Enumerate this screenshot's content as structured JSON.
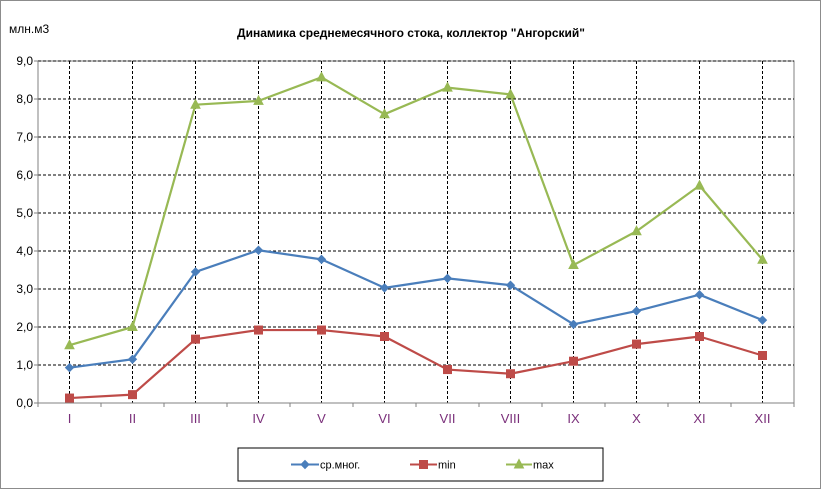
{
  "chart_data": {
    "type": "line",
    "title": "Динамика среднемесячного стока, коллектор \"Ангорский\"",
    "ylabel": "млн.м3",
    "xlabel": "",
    "categories": [
      "I",
      "II",
      "III",
      "IV",
      "V",
      "VI",
      "VII",
      "VIII",
      "IX",
      "X",
      "XI",
      "XII"
    ],
    "ylim": [
      0,
      9
    ],
    "yticks": [
      "0,0",
      "1,0",
      "2,0",
      "3,0",
      "4,0",
      "5,0",
      "6,0",
      "7,0",
      "8,0",
      "9,0"
    ],
    "grid": true,
    "legend_position": "bottom",
    "series": [
      {
        "name": "ср.мног.",
        "color": "#4a7ebb",
        "marker": "diamond",
        "values": [
          0.93,
          1.15,
          3.45,
          4.02,
          3.78,
          3.03,
          3.28,
          3.1,
          2.07,
          2.42,
          2.85,
          2.18
        ]
      },
      {
        "name": "min",
        "color": "#be4b48",
        "marker": "square",
        "values": [
          0.13,
          0.22,
          1.68,
          1.92,
          1.92,
          1.75,
          0.88,
          0.77,
          1.1,
          1.55,
          1.75,
          1.25
        ]
      },
      {
        "name": "max",
        "color": "#98b954",
        "marker": "triangle",
        "values": [
          1.52,
          2.0,
          7.85,
          7.95,
          8.57,
          7.6,
          8.3,
          8.12,
          3.63,
          4.52,
          5.72,
          3.77
        ]
      }
    ]
  }
}
